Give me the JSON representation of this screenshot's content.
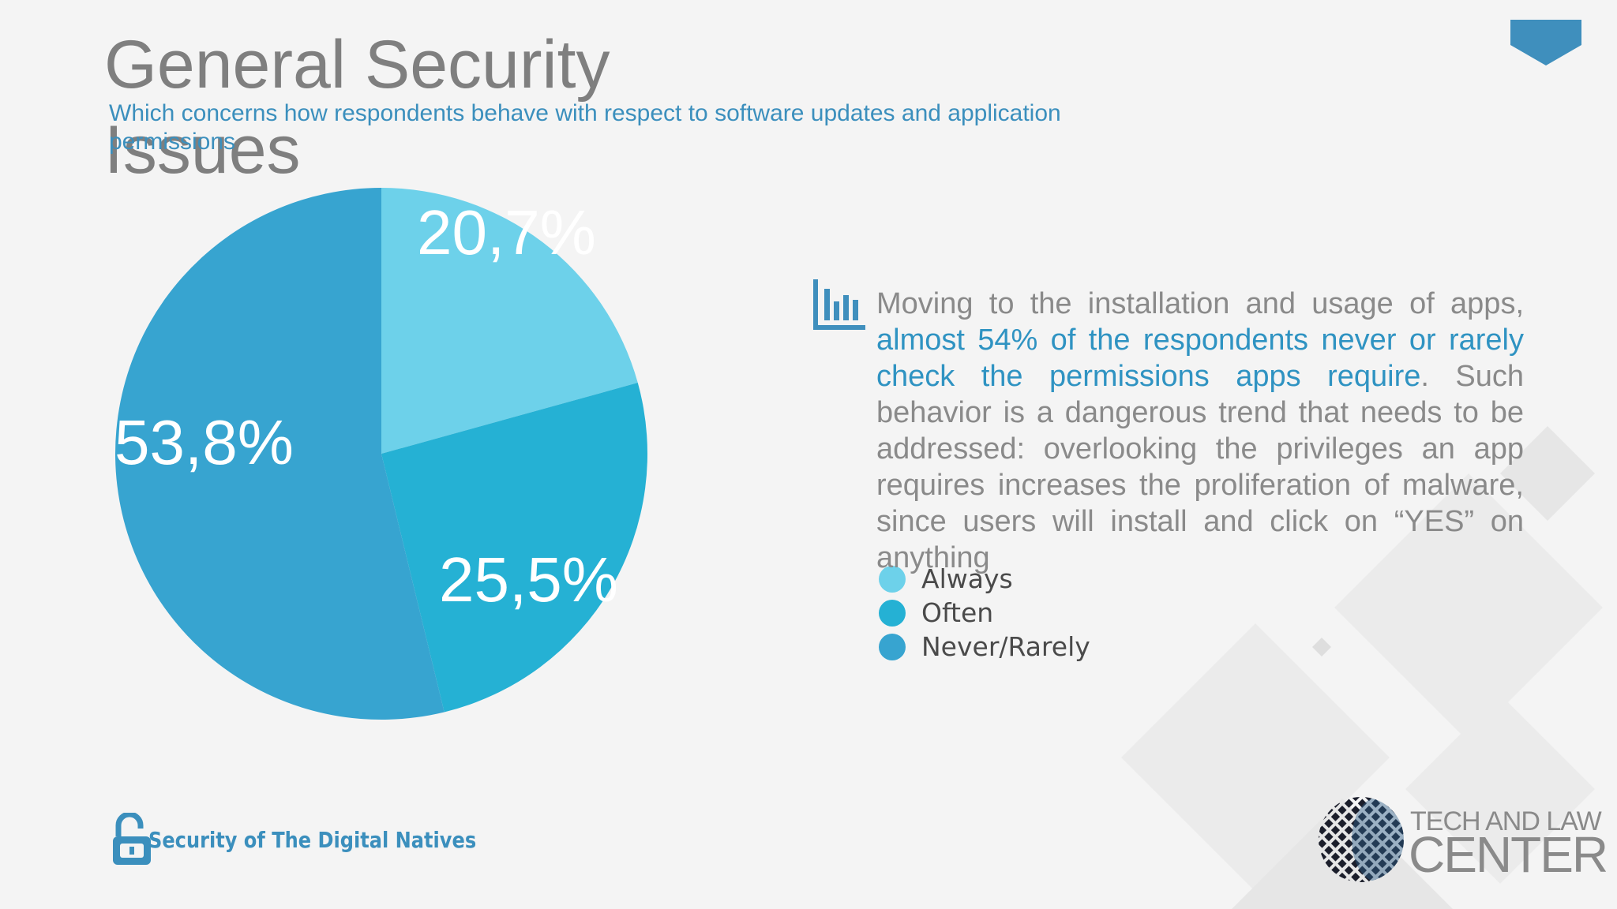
{
  "slide": {
    "title": "General Security Issues",
    "subtitle": "Which concerns how respondents behave with respect to software updates and application permissions"
  },
  "body": {
    "text_before": "Moving to the installation and usage of apps, ",
    "text_highlight": "almost 54% of the respondents never or rarely check the permissions apps require",
    "text_after": ". Such behavior is a dangerous trend that needs to be addressed: overlooking the privileges an app requires increases the proliferation of malware, since users will install and click on “YES” on anything",
    "icon": "bar-chart-icon"
  },
  "chart_data": {
    "type": "pie",
    "title": "",
    "slices": [
      {
        "label": "Always",
        "value": 20.7,
        "display": "20,7%",
        "color": "#6dd1ea"
      },
      {
        "label": "Often",
        "value": 25.5,
        "display": "25,5%",
        "color": "#25b1d4"
      },
      {
        "label": "Never/Rarely",
        "value": 53.8,
        "display": "53,8%",
        "color": "#37a4d0"
      }
    ],
    "legend_position": "right"
  },
  "footer": {
    "project": "Security of The Digital Natives",
    "project_icon": "unlocked-padlock-icon",
    "brand_line1": "TECH AND LAW",
    "brand_line2": "CENTER",
    "brand_icon": "globe-logo-icon"
  },
  "colors": {
    "accent": "#3b8fbd",
    "title": "#7f7f7f",
    "text": "#8a8a8a"
  }
}
